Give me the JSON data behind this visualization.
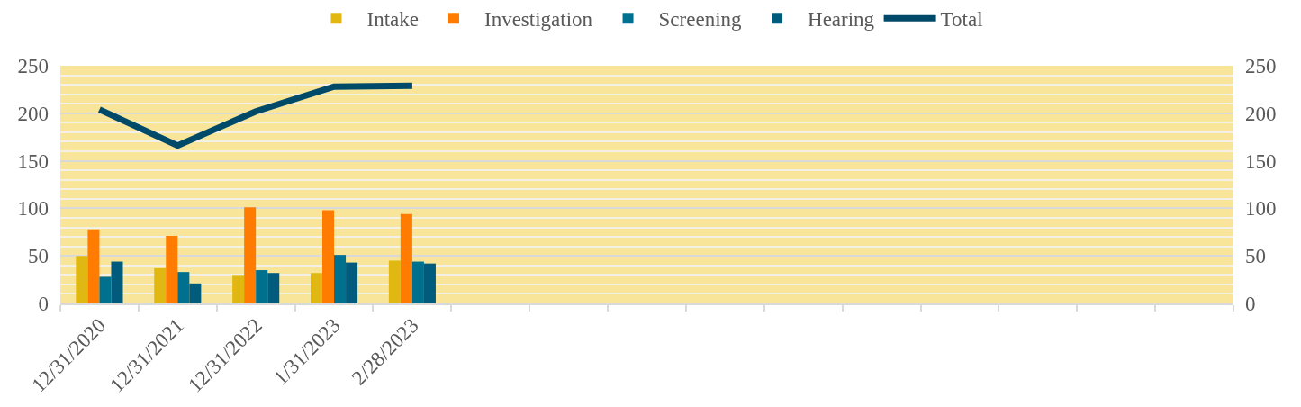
{
  "chart_data": {
    "type": "bar",
    "categories": [
      "12/31/2020",
      "12/31/2021",
      "12/31/2022",
      "1/31/2023",
      "2/28/2023",
      null,
      null,
      null,
      null,
      null,
      null,
      null,
      null,
      null,
      null
    ],
    "series": [
      {
        "name": "Intake",
        "color": "#e1b812",
        "values": [
          50,
          37,
          30,
          32,
          45,
          null,
          null,
          null,
          null,
          null,
          null,
          null,
          null,
          null,
          null
        ]
      },
      {
        "name": "Investigation",
        "color": "#ff7c00",
        "values": [
          78,
          71,
          101,
          98,
          94,
          null,
          null,
          null,
          null,
          null,
          null,
          null,
          null,
          null,
          null
        ]
      },
      {
        "name": "Screening",
        "color": "#00708f",
        "values": [
          28,
          33,
          35,
          51,
          44,
          null,
          null,
          null,
          null,
          null,
          null,
          null,
          null,
          null,
          null
        ]
      },
      {
        "name": "Hearing",
        "color": "#005b7c",
        "values": [
          44,
          21,
          32,
          43,
          42,
          null,
          null,
          null,
          null,
          null,
          null,
          null,
          null,
          null,
          null
        ]
      },
      {
        "name": "Total",
        "type": "line",
        "axis": "y2",
        "color": "#004a69",
        "values": [
          204,
          166,
          202,
          228,
          229,
          null,
          null,
          null,
          null,
          null,
          null,
          null,
          null,
          null,
          null
        ]
      }
    ],
    "ylim": [
      0,
      250
    ],
    "yticks": [
      0,
      {
        "value": 10,
        "label": null
      },
      {
        "value": 20,
        "label": null
      },
      {
        "value": 30,
        "label": null
      },
      {
        "value": 40,
        "label": null
      },
      50,
      {
        "value": 60,
        "label": null
      },
      {
        "value": 70,
        "label": null
      },
      {
        "value": 80,
        "label": null
      },
      {
        "value": 90,
        "label": null
      },
      100,
      {
        "value": 110,
        "label": null
      },
      {
        "value": 120,
        "label": null
      },
      {
        "value": 130,
        "label": null
      },
      {
        "value": 140,
        "label": null
      },
      150,
      {
        "value": 160,
        "label": null
      },
      {
        "value": 170,
        "label": null
      },
      {
        "value": 180,
        "label": null
      },
      {
        "value": 190,
        "label": null
      },
      200,
      {
        "value": 210,
        "label": null
      },
      {
        "value": 220,
        "label": null
      },
      {
        "value": 230,
        "label": null
      },
      {
        "value": 240,
        "label": null
      },
      250
    ],
    "y2lim": [
      0,
      250
    ],
    "y2ticks": [
      0,
      50,
      100,
      150,
      200,
      250
    ],
    "grid": "y",
    "legend": "top"
  }
}
